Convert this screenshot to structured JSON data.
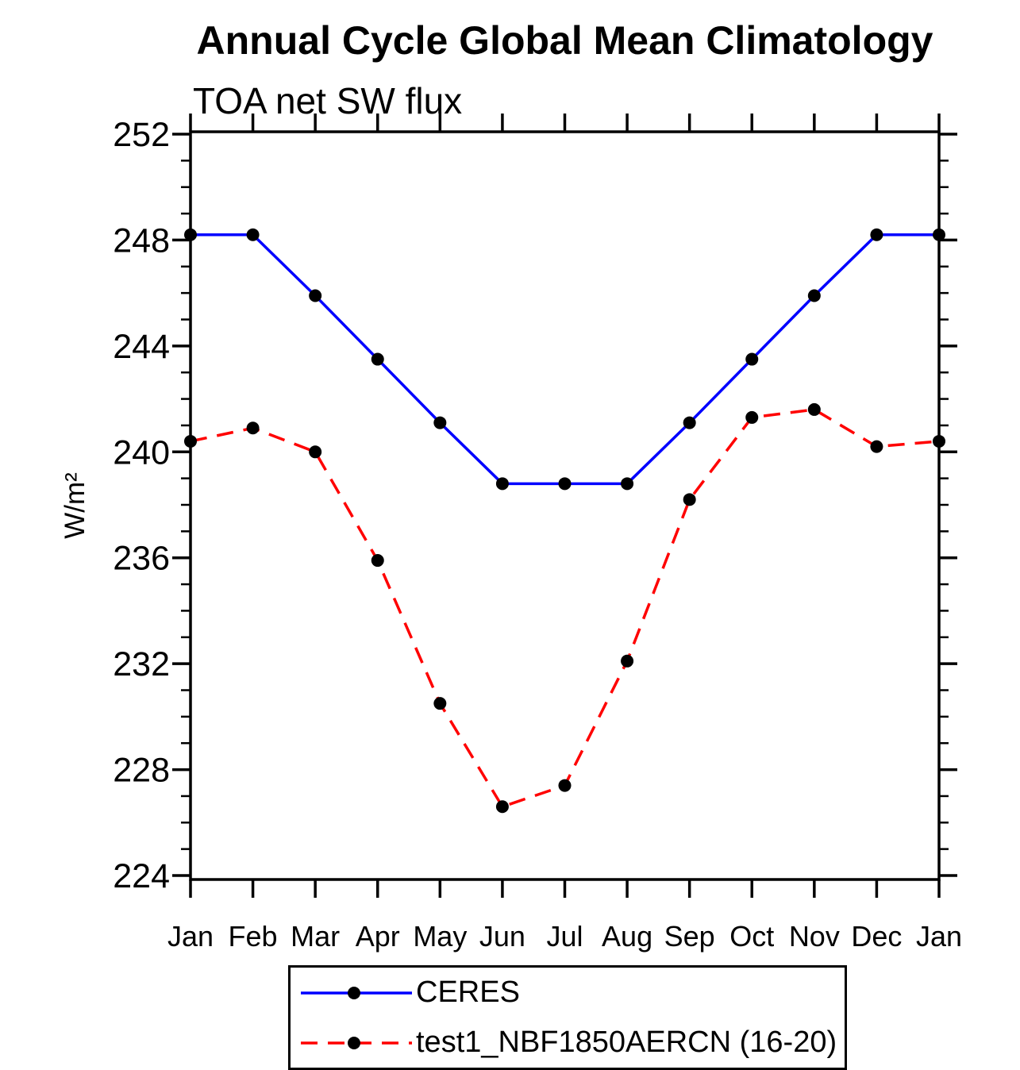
{
  "chart_data": {
    "type": "line",
    "title": "Annual Cycle Global Mean Climatology",
    "subtitle": "TOA net SW flux",
    "ylabel": "W/m²",
    "xlabel": "",
    "categories": [
      "Jan",
      "Feb",
      "Mar",
      "Apr",
      "May",
      "Jun",
      "Jul",
      "Aug",
      "Sep",
      "Oct",
      "Nov",
      "Dec",
      "Jan"
    ],
    "series": [
      {
        "name": "CERES",
        "color": "#0000ff",
        "line_style": "solid",
        "marker": "circle",
        "marker_color": "#000000",
        "values": [
          248.2,
          248.2,
          245.9,
          243.5,
          241.1,
          238.8,
          238.8,
          238.8,
          241.1,
          243.5,
          245.9,
          248.2,
          248.2
        ]
      },
      {
        "name": "test1_NBF1850AERCN (16-20)",
        "color": "#ff0000",
        "line_style": "dashed",
        "marker": "circle",
        "marker_color": "#000000",
        "values": [
          240.4,
          240.9,
          240.0,
          235.9,
          230.5,
          226.6,
          227.4,
          232.1,
          238.2,
          241.3,
          241.6,
          240.2,
          240.4
        ]
      }
    ],
    "ylim": [
      224,
      252
    ],
    "ytick_major": [
      224,
      228,
      232,
      236,
      240,
      244,
      248,
      252
    ],
    "ytick_minor_step": 1,
    "grid": false,
    "legend_position": "bottom",
    "axis_color": "#000000",
    "background_color": "#ffffff"
  }
}
